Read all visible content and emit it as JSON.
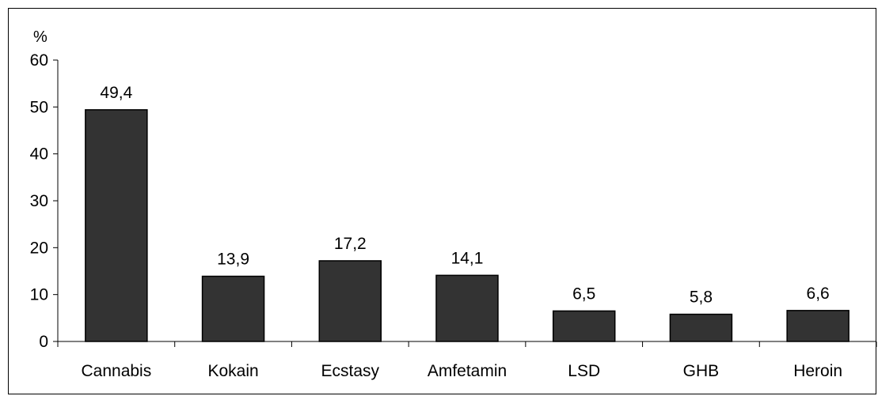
{
  "chart_data": {
    "type": "bar",
    "title": "",
    "xlabel": "",
    "ylabel": "%",
    "categories": [
      "Cannabis",
      "Kokain",
      "Ecstasy",
      "Amfetamin",
      "LSD",
      "GHB",
      "Heroin"
    ],
    "values": [
      49.4,
      13.9,
      17.2,
      14.1,
      6.5,
      5.8,
      6.6
    ],
    "value_labels": [
      "49,4",
      "13,9",
      "17,2",
      "14,1",
      "6,5",
      "5,8",
      "6,6"
    ],
    "ylim": [
      0,
      60
    ],
    "yticks": [
      0,
      10,
      20,
      30,
      40,
      50,
      60
    ],
    "ytick_labels": [
      "0",
      "10",
      "20",
      "30",
      "40",
      "50",
      "60"
    ],
    "grid": false,
    "legend": "none",
    "bar_color": "#333333",
    "bar_edge_color": "#000000"
  }
}
